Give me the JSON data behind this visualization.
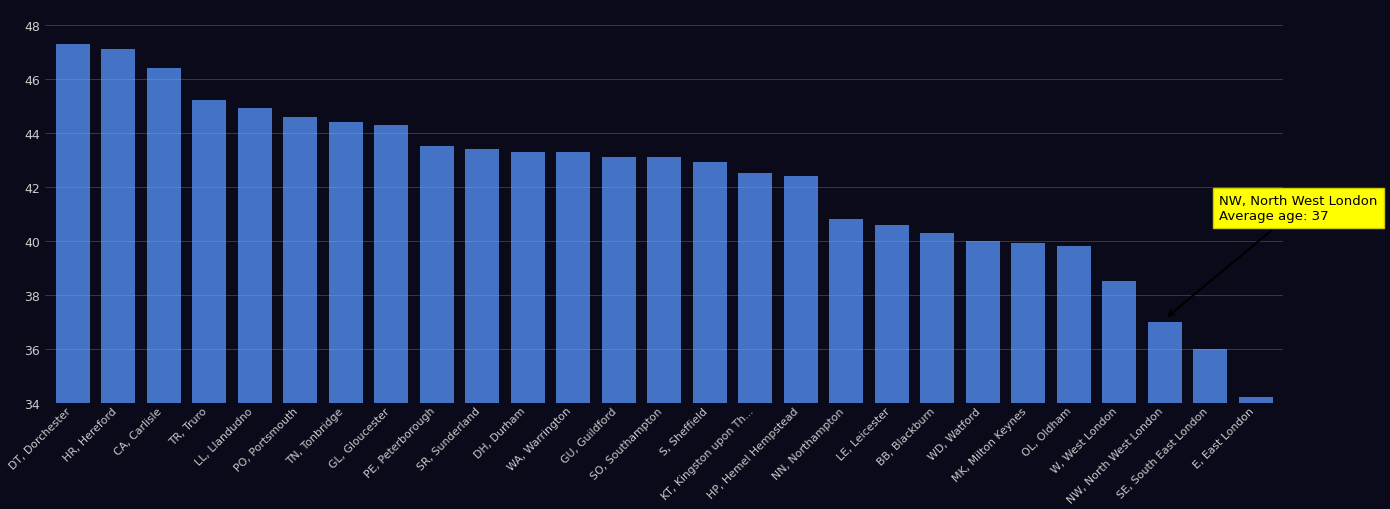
{
  "categories": [
    "DT, Dorchester",
    "HR, Hereford",
    "CA, Carlisle",
    "TR, Truro",
    "LL, Llandudno",
    "PO, Portsmouth",
    "TN, Tonbridge",
    "GL, Gloucester",
    "PE, Peterborough",
    "SR, Sunderland",
    "DH, Durham",
    "WA, Warrington",
    "GU, Guildford",
    "SO, Southampton",
    "S, Sheffield",
    "KT, Kingston upon Th...",
    "HP, Hemel Hempstead",
    "NN, Northampton",
    "LE, Leicester",
    "BB, Blackburn",
    "WD, Watford",
    "MK, Milton Keynes",
    "OL, Oldham",
    "W, West London",
    "NW, North West London",
    "SE, South East London",
    "E, East London"
  ],
  "values": [
    47.3,
    47.1,
    46.4,
    45.2,
    44.9,
    44.6,
    44.4,
    44.3,
    43.5,
    43.4,
    43.3,
    43.3,
    43.1,
    43.1,
    42.9,
    42.5,
    42.4,
    40.8,
    40.6,
    40.3,
    40.0,
    39.9,
    39.8,
    38.5,
    37.0,
    36.0,
    34.2
  ],
  "bar_color": "#4472C4",
  "background_color": "#0a0a1a",
  "grid_color": "#aaaaaa",
  "text_color": "#cccccc",
  "ylim_min": 34,
  "ylim_max": 48.8,
  "yticks": [
    34,
    36,
    38,
    40,
    42,
    44,
    46,
    48
  ],
  "highlight_index": 24,
  "annotation_line1": "NW, North West London",
  "annotation_line2": "Average age: ",
  "annotation_bold": "37",
  "annotation_bg": "#ffff00",
  "bar_width": 0.75
}
